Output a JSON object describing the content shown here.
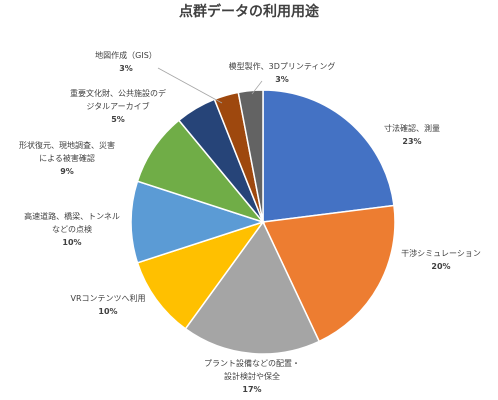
{
  "chart_data": {
    "type": "pie",
    "title": "点群データの利用用途",
    "slices": [
      {
        "label_lines": [
          "寸法確認、測量"
        ],
        "pct_label": "23%",
        "value": 23,
        "color": "#4472C4"
      },
      {
        "label_lines": [
          "干渉シミュレーション"
        ],
        "pct_label": "20%",
        "value": 20,
        "color": "#ED7D31"
      },
      {
        "label_lines": [
          "プラント設備などの配置・",
          "設計検討や保全"
        ],
        "pct_label": "17%",
        "value": 17,
        "color": "#A5A5A5"
      },
      {
        "label_lines": [
          "VRコンテンツへ利用"
        ],
        "pct_label": "10%",
        "value": 10,
        "color": "#FFC000"
      },
      {
        "label_lines": [
          "高速道路、橋梁、トンネル",
          "などの点検"
        ],
        "pct_label": "10%",
        "value": 10,
        "color": "#5B9BD5"
      },
      {
        "label_lines": [
          "形状復元、現地調査、災害",
          "による被害確認"
        ],
        "pct_label": "9%",
        "value": 9,
        "color": "#70AD47"
      },
      {
        "label_lines": [
          "重要文化財、公共施設のデ",
          "ジタルアーカイブ"
        ],
        "pct_label": "5%",
        "value": 5,
        "color": "#264478"
      },
      {
        "label_lines": [
          "地図作成（GIS）"
        ],
        "pct_label": "3%",
        "value": 3,
        "color": "#9E480E"
      },
      {
        "label_lines": [
          "模型製作、3Dプリンティング"
        ],
        "pct_label": "3%",
        "value": 3,
        "color": "#636363"
      }
    ]
  }
}
